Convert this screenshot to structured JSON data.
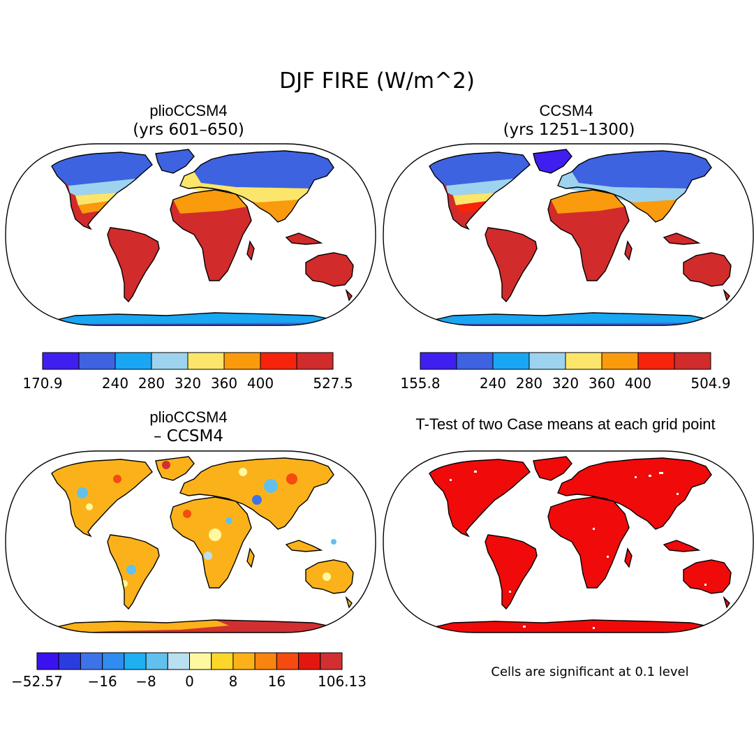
{
  "figure": {
    "title": "DJF FIRE (W/m^2)",
    "footnote": "Cells are significant at 0.1 level"
  },
  "panels": [
    {
      "id": "plio",
      "title": "plioCCSM4",
      "subtitle": "(yrs 601–650)",
      "colorbar": {
        "colors": [
          "#3f1ff0",
          "#3d63e0",
          "#19a6f2",
          "#9ed3ef",
          "#fbe66b",
          "#fa9a0d",
          "#f7230d",
          "#d12b2b"
        ],
        "tick_labels": [
          "170.9",
          "240",
          "280",
          "320",
          "360",
          "400",
          "527.5"
        ],
        "ticks": [
          170.9,
          240,
          280,
          320,
          360,
          400,
          527.5
        ]
      }
    },
    {
      "id": "ccsm4",
      "title": "CCSM4",
      "subtitle": "(yrs 1251–1300)",
      "colorbar": {
        "colors": [
          "#3f1ff0",
          "#3d63e0",
          "#19a6f2",
          "#9ed3ef",
          "#fbe66b",
          "#fa9a0d",
          "#f7230d",
          "#d12b2b"
        ],
        "tick_labels": [
          "155.8",
          "240",
          "280",
          "320",
          "360",
          "400",
          "504.9"
        ],
        "ticks": [
          155.8,
          240,
          280,
          320,
          360,
          400,
          504.9
        ]
      }
    },
    {
      "id": "diff",
      "title": "plioCCSM4",
      "subtitle": "– CCSM4",
      "colorbar": {
        "colors": [
          "#3a12f0",
          "#2a3ce0",
          "#3e72e8",
          "#2f8cf0",
          "#1fb0f2",
          "#62c0ee",
          "#b8e0f0",
          "#fef9a0",
          "#fdd62a",
          "#fbb21a",
          "#f98410",
          "#f54a10",
          "#e21810",
          "#d23030"
        ],
        "tick_labels": [
          "−52.57",
          "−16",
          "−8",
          "0",
          "8",
          "16",
          "106.13"
        ],
        "ticks": [
          -52.57,
          -16,
          -8,
          0,
          8,
          16,
          106.13
        ]
      }
    },
    {
      "id": "ttest",
      "title": "T-Test of two Case means at each grid point",
      "fill_color": "#f00a0a"
    }
  ]
}
